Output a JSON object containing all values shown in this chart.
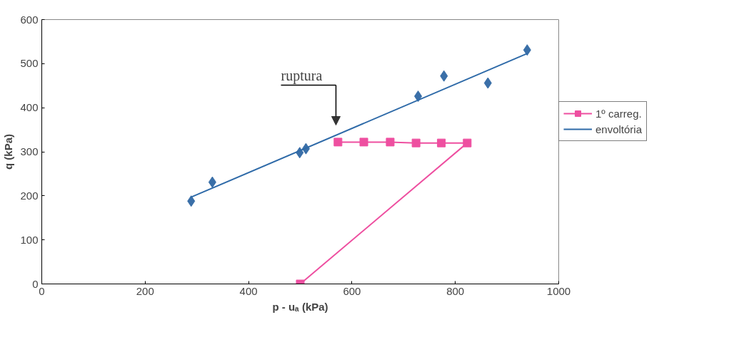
{
  "chart_data": {
    "type": "scatter",
    "xlabel": "p - uₐ (kPa)",
    "ylabel": "q (kPa)",
    "xlim": [
      0,
      1000
    ],
    "ylim": [
      0,
      600
    ],
    "xticks": [
      0,
      200,
      400,
      600,
      800,
      1000
    ],
    "yticks": [
      0,
      100,
      200,
      300,
      400,
      500,
      600
    ],
    "grid": false,
    "legend": "right",
    "series": [
      {
        "marker": "diamond",
        "color": "#3a6fa8",
        "x": [
          289,
          330,
          499,
          511,
          728,
          778,
          863,
          939
        ],
        "values": [
          188,
          231,
          298,
          307,
          426,
          472,
          456,
          531
        ]
      },
      {
        "type": "line",
        "marker": "square",
        "name": "1º carreg.",
        "color": "#ee4fa0",
        "x": [
          500,
          823,
          773,
          724,
          674,
          623,
          573
        ],
        "values": [
          0,
          320,
          320,
          320,
          322,
          322,
          322
        ]
      },
      {
        "type": "line",
        "marker": "none",
        "name": "envoltória",
        "color": "#2e6aa8",
        "x": [
          289,
          939
        ],
        "values": [
          197,
          523
        ]
      }
    ],
    "annotations": [
      "ruptura"
    ]
  }
}
